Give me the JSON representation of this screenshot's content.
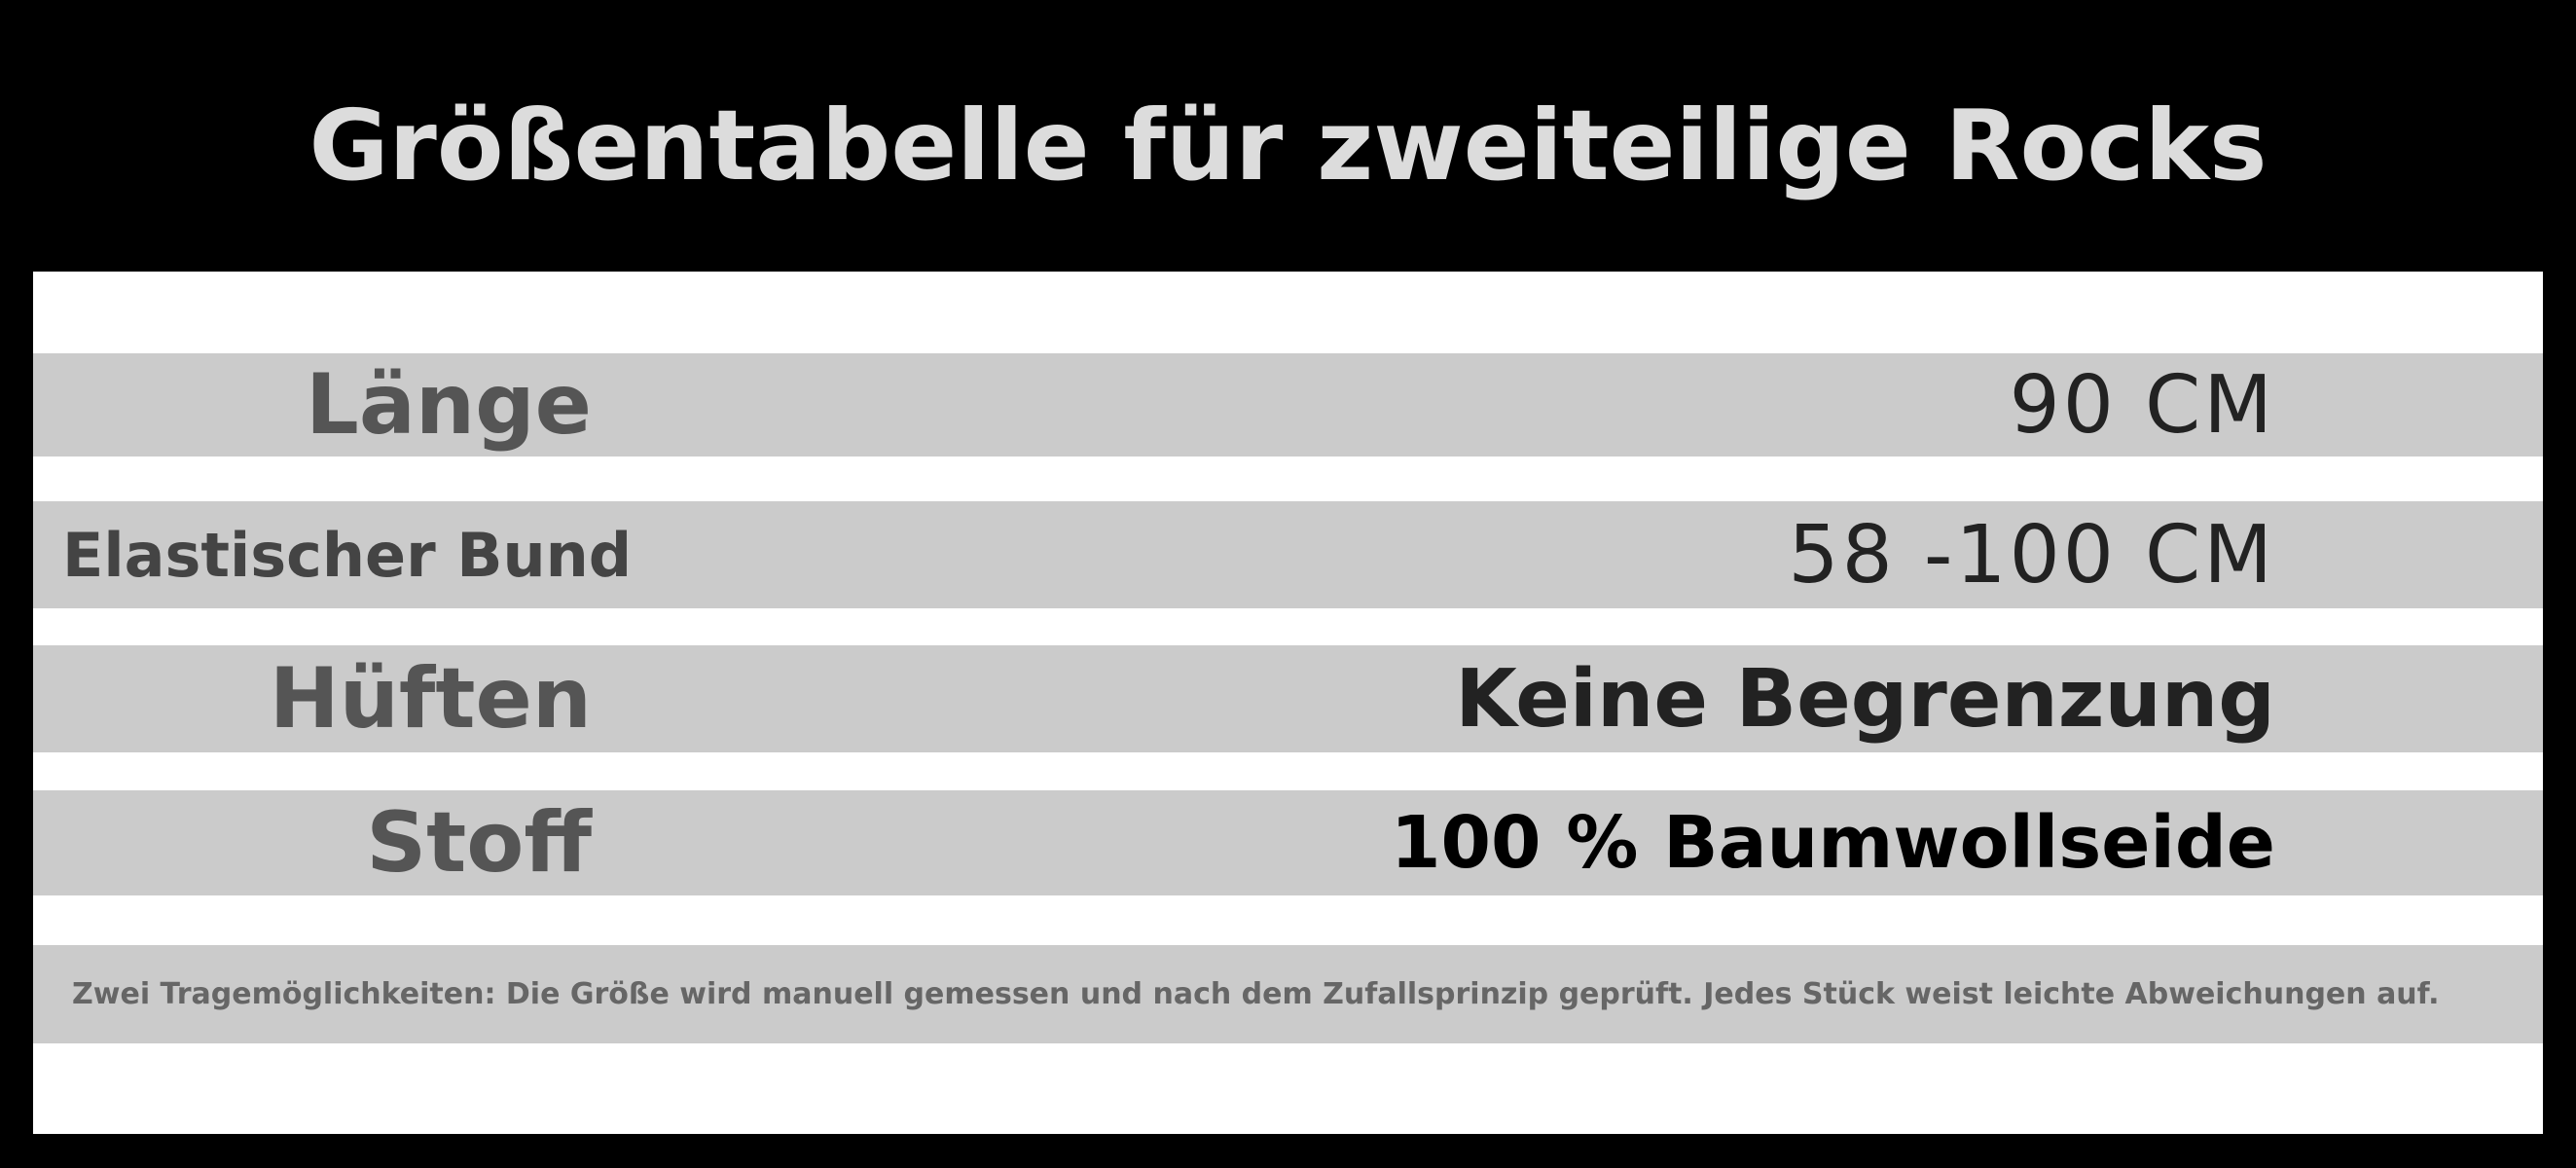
{
  "header": {
    "title": "Größentabelle für zweiteilige Rocks"
  },
  "table": {
    "rows": [
      [
        "Länge",
        "90 CM"
      ],
      [
        "Elastischer Bund",
        "58 -100 CM"
      ],
      [
        "Hüften",
        "Keine Begrenzung"
      ],
      [
        "Stoff",
        "100 % Baumwollseide"
      ]
    ]
  },
  "note": "Zwei Tragemöglichkeiten: Die Größe wird manuell gemessen und nach dem Zufallsprinzip geprüft. Jedes Stück weist leichte Abweichungen auf."
}
